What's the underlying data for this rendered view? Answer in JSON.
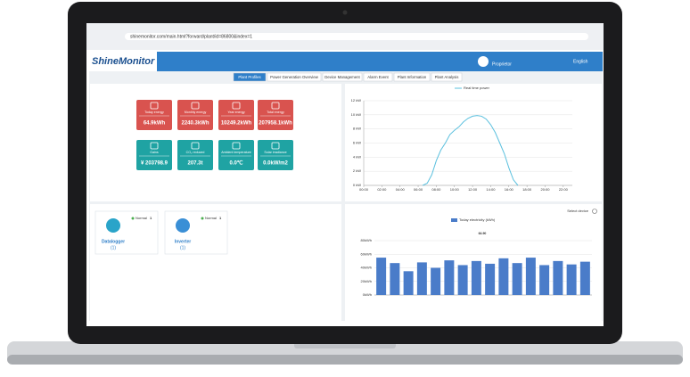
{
  "browser": {
    "url": "shinemonitor.com/main.html?forward/plant/id=86800&index=1"
  },
  "header": {
    "logo": "ShineMonitor",
    "role": "Proprietor",
    "language": "English"
  },
  "tabs": [
    "Plant Profiles",
    "Power Generation Overview",
    "Device Management",
    "Alarm Event",
    "Plant Information",
    "Plant Analysis"
  ],
  "tiles": [
    {
      "label": "Today energy",
      "value": "64.9kWh",
      "color": "#d9534f"
    },
    {
      "label": "Monthly energy",
      "value": "2240.3kWh",
      "color": "#d9534f"
    },
    {
      "label": "Year energy",
      "value": "10249.2kWh",
      "color": "#d9534f"
    },
    {
      "label": "Total energy",
      "value": "207958.1kWh",
      "color": "#d9534f"
    },
    {
      "label": "Gains",
      "value": "¥ 203798.9",
      "color": "#1fa3a3"
    },
    {
      "label": "CO₂ reduced",
      "value": "207.3t",
      "color": "#1fa3a3"
    },
    {
      "label": "Ambient temperature",
      "value": "0.0℃",
      "color": "#1fa3a3"
    },
    {
      "label": "Solar irradiance",
      "value": "0.0kW/m2",
      "color": "#1fa3a3"
    }
  ],
  "devices": [
    {
      "name": "Datalogger",
      "count": "(1)",
      "status": "Normal",
      "normal": 1
    },
    {
      "name": "Inverter",
      "count": "(1)",
      "status": "Normal",
      "normal": 1
    }
  ],
  "power_chart": {
    "type": "line",
    "series": [
      {
        "name": "Real time power",
        "color": "#5bc0de",
        "x": [
          6.5,
          7,
          7.5,
          8,
          8.5,
          9,
          9.5,
          10,
          10.5,
          11,
          11.5,
          12,
          12.5,
          13,
          13.5,
          14,
          14.5,
          15,
          15.5,
          16,
          16.5,
          17
        ],
        "values": [
          0,
          0.3,
          1.5,
          3.5,
          5,
          6,
          7.2,
          7.8,
          8.3,
          9,
          9.5,
          9.8,
          9.9,
          9.8,
          9.4,
          8.6,
          7.5,
          6,
          4.5,
          2.5,
          0.8,
          0
        ]
      }
    ],
    "xlim": [
      0,
      23
    ],
    "xticks": [
      {
        "value": 0,
        "label": "00:00"
      },
      {
        "value": 2,
        "label": "02:00"
      },
      {
        "value": 4,
        "label": "04:00"
      },
      {
        "value": 6,
        "label": "06:00"
      },
      {
        "value": 8,
        "label": "08:00"
      },
      {
        "value": 10,
        "label": "10:00"
      },
      {
        "value": 12,
        "label": "12:00"
      },
      {
        "value": 14,
        "label": "14:00"
      },
      {
        "value": 16,
        "label": "16:00"
      },
      {
        "value": 18,
        "label": "18:00"
      },
      {
        "value": 20,
        "label": "20:00"
      },
      {
        "value": 22,
        "label": "22:00"
      }
    ],
    "ylim": [
      0,
      12
    ],
    "yticks": [
      {
        "value": 0,
        "label": "0 kW"
      },
      {
        "value": 2,
        "label": "2 kW"
      },
      {
        "value": 4,
        "label": "4 kW"
      },
      {
        "value": 6,
        "label": "6 kW"
      },
      {
        "value": 8,
        "label": "8 kW"
      },
      {
        "value": 10,
        "label": "10 kW"
      },
      {
        "value": 12,
        "label": "12 kW"
      }
    ],
    "grid": true
  },
  "energy_chart": {
    "type": "bar",
    "select": "Select device",
    "annotation": "64.90",
    "categories": [
      null,
      null,
      null,
      null,
      null,
      null,
      null,
      null,
      null,
      null,
      null,
      null,
      null,
      null,
      null,
      null
    ],
    "series": [
      {
        "name": "Today electricity (kWh)",
        "color": "#4a7cc9",
        "values": [
          55,
          47,
          35,
          48,
          40,
          51,
          44,
          50,
          46,
          54,
          47,
          55,
          44,
          50,
          45,
          49
        ]
      }
    ],
    "ylim": [
      0,
      80
    ],
    "yticks": [
      {
        "value": 0,
        "label": "0kWh"
      },
      {
        "value": 20,
        "label": "20kWh"
      },
      {
        "value": 40,
        "label": "40kWh"
      },
      {
        "value": 60,
        "label": "60kWh"
      },
      {
        "value": 80,
        "label": "80kWh"
      }
    ],
    "grid": true
  }
}
